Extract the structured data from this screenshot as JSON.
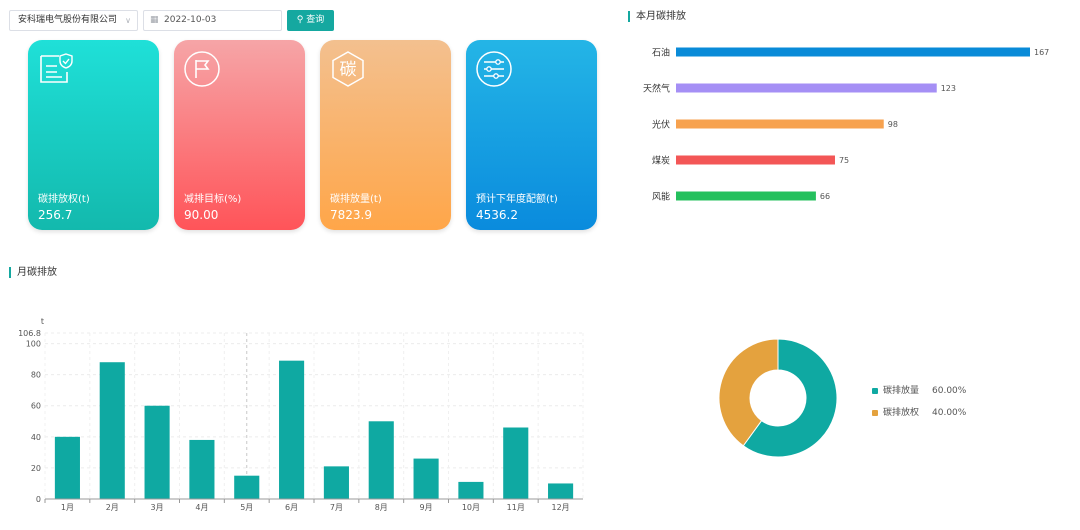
{
  "toolbar": {
    "company": "安科瑞电气股份有限公司",
    "date": "2022-10-03",
    "search_label": "查询"
  },
  "cards": [
    {
      "label": "碳排放权(t)",
      "value": "256.7",
      "icon": "document-shield-icon"
    },
    {
      "label": "减排目标(%)",
      "value": "90.00",
      "icon": "flag-icon"
    },
    {
      "label": "碳排放量(t)",
      "value": "7823.9",
      "icon": "carbon-char-icon",
      "icon_char": "碳"
    },
    {
      "label": "预计下年度配额(t)",
      "value": "4536.2",
      "icon": "sliders-icon"
    }
  ],
  "sections": {
    "month_carbon": "本月碳排放",
    "monthly": "月碳排放"
  },
  "chart_data": [
    {
      "type": "bar",
      "orientation": "horizontal",
      "title": "本月碳排放",
      "categories": [
        "石油",
        "天然气",
        "光伏",
        "煤炭",
        "风能"
      ],
      "values": [
        167,
        123,
        98,
        75,
        66
      ],
      "colors": [
        "#0a8bd8",
        "#a58ff5",
        "#f7a24f",
        "#f35656",
        "#24c05d"
      ],
      "xlim": [
        0,
        167
      ]
    },
    {
      "type": "bar",
      "title": "月碳排放",
      "unit": "t",
      "categories": [
        "1月",
        "2月",
        "3月",
        "4月",
        "5月",
        "6月",
        "7月",
        "8月",
        "9月",
        "10月",
        "11月",
        "12月"
      ],
      "values": [
        40,
        88,
        60,
        38,
        15,
        89,
        21,
        50,
        26,
        11,
        46,
        10
      ],
      "ylim": [
        0,
        106.8
      ],
      "yticks": [
        0,
        20,
        40,
        60,
        80,
        100,
        106.8
      ],
      "color": "#0fa9a2",
      "grid": true
    },
    {
      "type": "pie",
      "style": "donut",
      "labels": [
        "碳排放量",
        "碳排放权"
      ],
      "values": [
        60,
        40
      ],
      "percent_labels": [
        "60.00%",
        "40.00%"
      ],
      "colors": [
        "#0fa9a2",
        "#e4a23e"
      ],
      "legend": "right"
    }
  ]
}
